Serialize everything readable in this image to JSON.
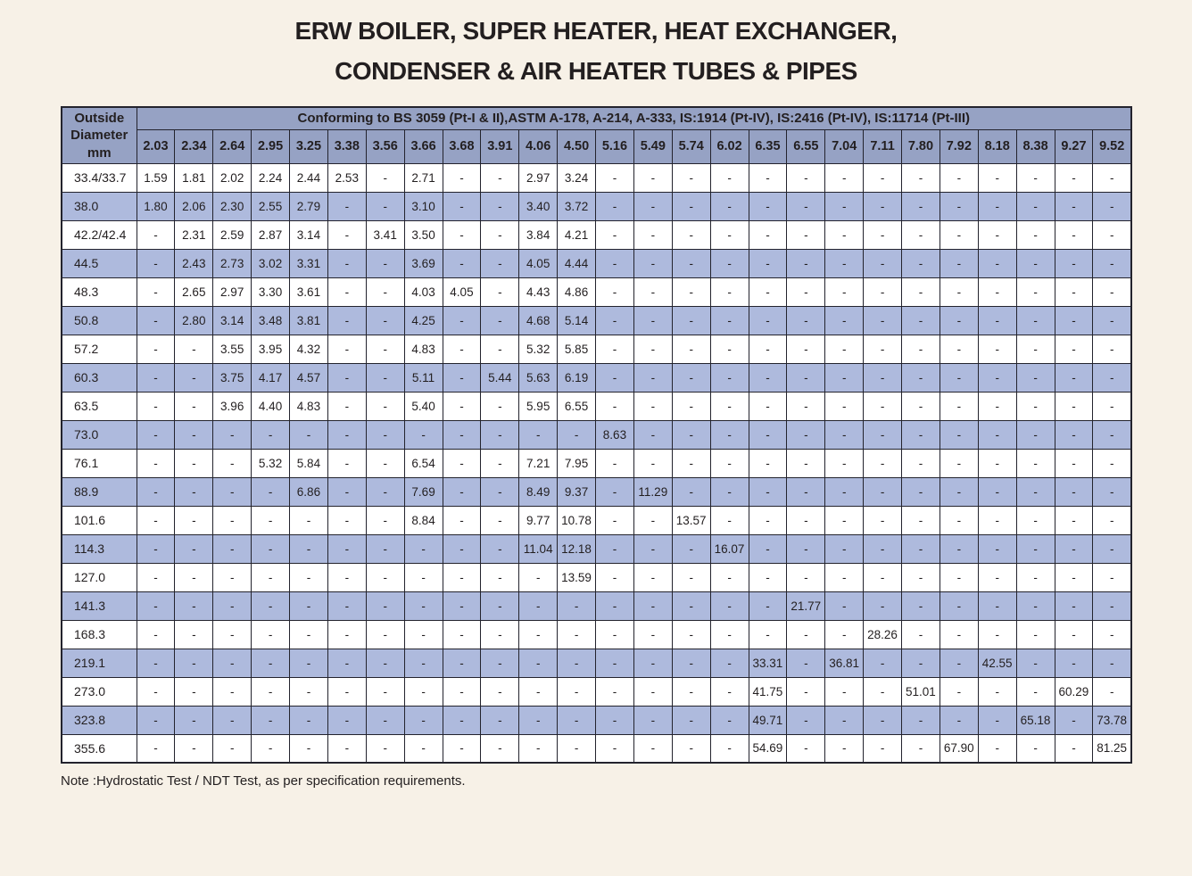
{
  "page": {
    "title_line1": "ERW BOILER, SUPER HEATER, HEAT EXCHANGER,",
    "title_line2": "CONDENSER & AIR HEATER TUBES & PIPES",
    "note": "Note :Hydrostatic Test / NDT Test, as per specification requirements."
  },
  "colors": {
    "background": "#f7f1e7",
    "header_band": "#96a2c4",
    "row_alt": "#aebadd",
    "row_base": "#ffffff",
    "border": "#23232d",
    "text": "#231f20"
  },
  "chart_data": {
    "type": "table",
    "title": "ERW BOILER, SUPER HEATER, HEAT EXCHANGER, CONDENSER & AIR HEATER TUBES & PIPES",
    "corner_header_lines": [
      "Outside",
      "Diameter",
      "mm"
    ],
    "conforming_header": "Conforming to BS 3059 (Pt-I & II),ASTM A-178, A-214, A-333, IS:1914 (Pt-IV), IS:2416 (Pt-IV), IS:11714 (Pt-III)",
    "thickness_columns": [
      "2.03",
      "2.34",
      "2.64",
      "2.95",
      "3.25",
      "3.38",
      "3.56",
      "3.66",
      "3.68",
      "3.91",
      "4.06",
      "4.50",
      "5.16",
      "5.49",
      "5.74",
      "6.02",
      "6.35",
      "6.55",
      "7.04",
      "7.11",
      "7.80",
      "7.92",
      "8.18",
      "8.38",
      "9.27",
      "9.52"
    ],
    "rows": [
      {
        "od": "33.4/33.7",
        "values": [
          "1.59",
          "1.81",
          "2.02",
          "2.24",
          "2.44",
          "2.53",
          "-",
          "2.71",
          "-",
          "-",
          "2.97",
          "3.24",
          "-",
          "-",
          "-",
          "-",
          "-",
          "-",
          "-",
          "-",
          "-",
          "-",
          "-",
          "-",
          "-",
          "-"
        ]
      },
      {
        "od": "38.0",
        "values": [
          "1.80",
          "2.06",
          "2.30",
          "2.55",
          "2.79",
          "-",
          "-",
          "3.10",
          "-",
          "-",
          "3.40",
          "3.72",
          "-",
          "-",
          "-",
          "-",
          "-",
          "-",
          "-",
          "-",
          "-",
          "-",
          "-",
          "-",
          "-",
          "-"
        ]
      },
      {
        "od": "42.2/42.4",
        "values": [
          "-",
          "2.31",
          "2.59",
          "2.87",
          "3.14",
          "-",
          "3.41",
          "3.50",
          "-",
          "-",
          "3.84",
          "4.21",
          "-",
          "-",
          "-",
          "-",
          "-",
          "-",
          "-",
          "-",
          "-",
          "-",
          "-",
          "-",
          "-",
          "-"
        ]
      },
      {
        "od": "44.5",
        "values": [
          "-",
          "2.43",
          "2.73",
          "3.02",
          "3.31",
          "-",
          "-",
          "3.69",
          "-",
          "-",
          "4.05",
          "4.44",
          "-",
          "-",
          "-",
          "-",
          "-",
          "-",
          "-",
          "-",
          "-",
          "-",
          "-",
          "-",
          "-",
          "-"
        ]
      },
      {
        "od": "48.3",
        "values": [
          "-",
          "2.65",
          "2.97",
          "3.30",
          "3.61",
          "-",
          "-",
          "4.03",
          "4.05",
          "-",
          "4.43",
          "4.86",
          "-",
          "-",
          "-",
          "-",
          "-",
          "-",
          "-",
          "-",
          "-",
          "-",
          "-",
          "-",
          "-",
          "-"
        ]
      },
      {
        "od": "50.8",
        "values": [
          "-",
          "2.80",
          "3.14",
          "3.48",
          "3.81",
          "-",
          "-",
          "4.25",
          "-",
          "-",
          "4.68",
          "5.14",
          "-",
          "-",
          "-",
          "-",
          "-",
          "-",
          "-",
          "-",
          "-",
          "-",
          "-",
          "-",
          "-",
          "-"
        ]
      },
      {
        "od": "57.2",
        "values": [
          "-",
          "-",
          "3.55",
          "3.95",
          "4.32",
          "-",
          "-",
          "4.83",
          "-",
          "-",
          "5.32",
          "5.85",
          "-",
          "-",
          "-",
          "-",
          "-",
          "-",
          "-",
          "-",
          "-",
          "-",
          "-",
          "-",
          "-",
          "-"
        ]
      },
      {
        "od": "60.3",
        "values": [
          "-",
          "-",
          "3.75",
          "4.17",
          "4.57",
          "-",
          "-",
          "5.11",
          "-",
          "5.44",
          "5.63",
          "6.19",
          "-",
          "-",
          "-",
          "-",
          "-",
          "-",
          "-",
          "-",
          "-",
          "-",
          "-",
          "-",
          "-",
          "-"
        ]
      },
      {
        "od": "63.5",
        "values": [
          "-",
          "-",
          "3.96",
          "4.40",
          "4.83",
          "-",
          "-",
          "5.40",
          "-",
          "-",
          "5.95",
          "6.55",
          "-",
          "-",
          "-",
          "-",
          "-",
          "-",
          "-",
          "-",
          "-",
          "-",
          "-",
          "-",
          "-",
          "-"
        ]
      },
      {
        "od": "73.0",
        "values": [
          "-",
          "-",
          "-",
          "-",
          "-",
          "-",
          "-",
          "-",
          "-",
          "-",
          "-",
          "-",
          "8.63",
          "-",
          "-",
          "-",
          "-",
          "-",
          "-",
          "-",
          "-",
          "-",
          "-",
          "-",
          "-",
          "-"
        ]
      },
      {
        "od": "76.1",
        "values": [
          "-",
          "-",
          "-",
          "5.32",
          "5.84",
          "-",
          "-",
          "6.54",
          "-",
          "-",
          "7.21",
          "7.95",
          "-",
          "-",
          "-",
          "-",
          "-",
          "-",
          "-",
          "-",
          "-",
          "-",
          "-",
          "-",
          "-",
          "-"
        ]
      },
      {
        "od": "88.9",
        "values": [
          "-",
          "-",
          "-",
          "-",
          "6.86",
          "-",
          "-",
          "7.69",
          "-",
          "-",
          "8.49",
          "9.37",
          "-",
          "11.29",
          "-",
          "-",
          "-",
          "-",
          "-",
          "-",
          "-",
          "-",
          "-",
          "-",
          "-",
          "-"
        ]
      },
      {
        "od": "101.6",
        "values": [
          "-",
          "-",
          "-",
          "-",
          "-",
          "-",
          "-",
          "8.84",
          "-",
          "-",
          "9.77",
          "10.78",
          "-",
          "-",
          "13.57",
          "-",
          "-",
          "-",
          "-",
          "-",
          "-",
          "-",
          "-",
          "-",
          "-",
          "-"
        ]
      },
      {
        "od": "114.3",
        "values": [
          "-",
          "-",
          "-",
          "-",
          "-",
          "-",
          "-",
          "-",
          "-",
          "-",
          "11.04",
          "12.18",
          "-",
          "-",
          "-",
          "16.07",
          "-",
          "-",
          "-",
          "-",
          "-",
          "-",
          "-",
          "-",
          "-",
          "-"
        ]
      },
      {
        "od": "127.0",
        "values": [
          "-",
          "-",
          "-",
          "-",
          "-",
          "-",
          "-",
          "-",
          "-",
          "-",
          "-",
          "13.59",
          "-",
          "-",
          "-",
          "-",
          "-",
          "-",
          "-",
          "-",
          "-",
          "-",
          "-",
          "-",
          "-",
          "-"
        ]
      },
      {
        "od": "141.3",
        "values": [
          "-",
          "-",
          "-",
          "-",
          "-",
          "-",
          "-",
          "-",
          "-",
          "-",
          "-",
          "-",
          "-",
          "-",
          "-",
          "-",
          "-",
          "21.77",
          "-",
          "-",
          "-",
          "-",
          "-",
          "-",
          "-",
          "-"
        ]
      },
      {
        "od": "168.3",
        "values": [
          "-",
          "-",
          "-",
          "-",
          "-",
          "-",
          "-",
          "-",
          "-",
          "-",
          "-",
          "-",
          "-",
          "-",
          "-",
          "-",
          "-",
          "-",
          "-",
          "28.26",
          "-",
          "-",
          "-",
          "-",
          "-",
          "-"
        ]
      },
      {
        "od": "219.1",
        "values": [
          "-",
          "-",
          "-",
          "-",
          "-",
          "-",
          "-",
          "-",
          "-",
          "-",
          "-",
          "-",
          "-",
          "-",
          "-",
          "-",
          "33.31",
          "-",
          "36.81",
          "-",
          "-",
          "-",
          "42.55",
          "-",
          "-",
          "-"
        ]
      },
      {
        "od": "273.0",
        "values": [
          "-",
          "-",
          "-",
          "-",
          "-",
          "-",
          "-",
          "-",
          "-",
          "-",
          "-",
          "-",
          "-",
          "-",
          "-",
          "-",
          "41.75",
          "-",
          "-",
          "-",
          "51.01",
          "-",
          "-",
          "-",
          "60.29",
          "-"
        ]
      },
      {
        "od": "323.8",
        "values": [
          "-",
          "-",
          "-",
          "-",
          "-",
          "-",
          "-",
          "-",
          "-",
          "-",
          "-",
          "-",
          "-",
          "-",
          "-",
          "-",
          "49.71",
          "-",
          "-",
          "-",
          "-",
          "-",
          "-",
          "65.18",
          "-",
          "73.78"
        ]
      },
      {
        "od": "355.6",
        "values": [
          "-",
          "-",
          "-",
          "-",
          "-",
          "-",
          "-",
          "-",
          "-",
          "-",
          "-",
          "-",
          "-",
          "-",
          "-",
          "-",
          "54.69",
          "-",
          "-",
          "-",
          "-",
          "67.90",
          "-",
          "-",
          "-",
          "81.25"
        ]
      }
    ]
  }
}
